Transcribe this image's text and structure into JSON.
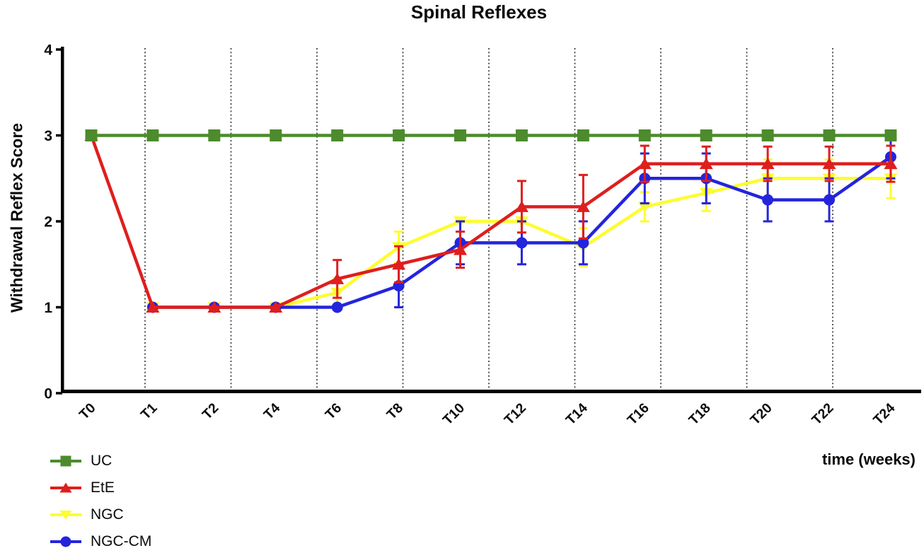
{
  "chart_data": {
    "type": "line",
    "title": "Spinal Reflexes",
    "xlabel": "time (weeks)",
    "ylabel": "Withdrawal Reflex Score",
    "ylim": [
      0,
      4
    ],
    "yticks": [
      0,
      1,
      2,
      3,
      4
    ],
    "categories": [
      "T0",
      "T1",
      "T2",
      "T4",
      "T6",
      "T8",
      "T10",
      "T12",
      "T14",
      "T16",
      "T18",
      "T20",
      "T22",
      "T24"
    ],
    "grid": "vertical-dotted",
    "legend_position": "bottom-left",
    "error_bars": "sem",
    "series": [
      {
        "name": "UC",
        "color": "#4d8b2d",
        "marker": "square",
        "values": [
          3,
          3,
          3,
          3,
          3,
          3,
          3,
          3,
          3,
          3,
          3,
          3,
          3,
          3
        ],
        "errors": [
          0,
          0,
          0,
          0,
          0,
          0,
          0,
          0,
          0,
          0,
          0,
          0,
          0,
          0
        ]
      },
      {
        "name": "EtE",
        "color": "#df1e1e",
        "marker": "triangle-up",
        "values": [
          3,
          1,
          1,
          1,
          1.33,
          1.5,
          1.67,
          2.17,
          2.17,
          2.67,
          2.67,
          2.67,
          2.67,
          2.67
        ],
        "errors": [
          0,
          0,
          0,
          0,
          0.22,
          0.21,
          0.21,
          0.3,
          0.37,
          0.21,
          0.2,
          0.2,
          0.2,
          0.21
        ]
      },
      {
        "name": "NGC",
        "color": "#fdfd30",
        "marker": "triangle-down",
        "values": [
          null,
          1,
          1,
          1,
          1.17,
          1.7,
          2,
          2,
          1.7,
          2.17,
          2.33,
          2.5,
          2.5,
          2.5
        ],
        "errors": [
          0,
          0,
          0,
          0,
          0.17,
          0.18,
          0,
          0,
          0.22,
          0.17,
          0.21,
          0.22,
          0.22,
          0.23
        ]
      },
      {
        "name": "NGC-CM",
        "color": "#2424dd",
        "marker": "circle",
        "values": [
          null,
          1,
          1,
          1,
          1,
          1.25,
          1.75,
          1.75,
          1.75,
          2.5,
          2.5,
          2.25,
          2.25,
          2.75
        ],
        "errors": [
          0,
          0,
          0,
          0,
          0,
          0.25,
          0.25,
          0.25,
          0.25,
          0.29,
          0.29,
          0.25,
          0.25,
          0.25
        ]
      }
    ]
  }
}
